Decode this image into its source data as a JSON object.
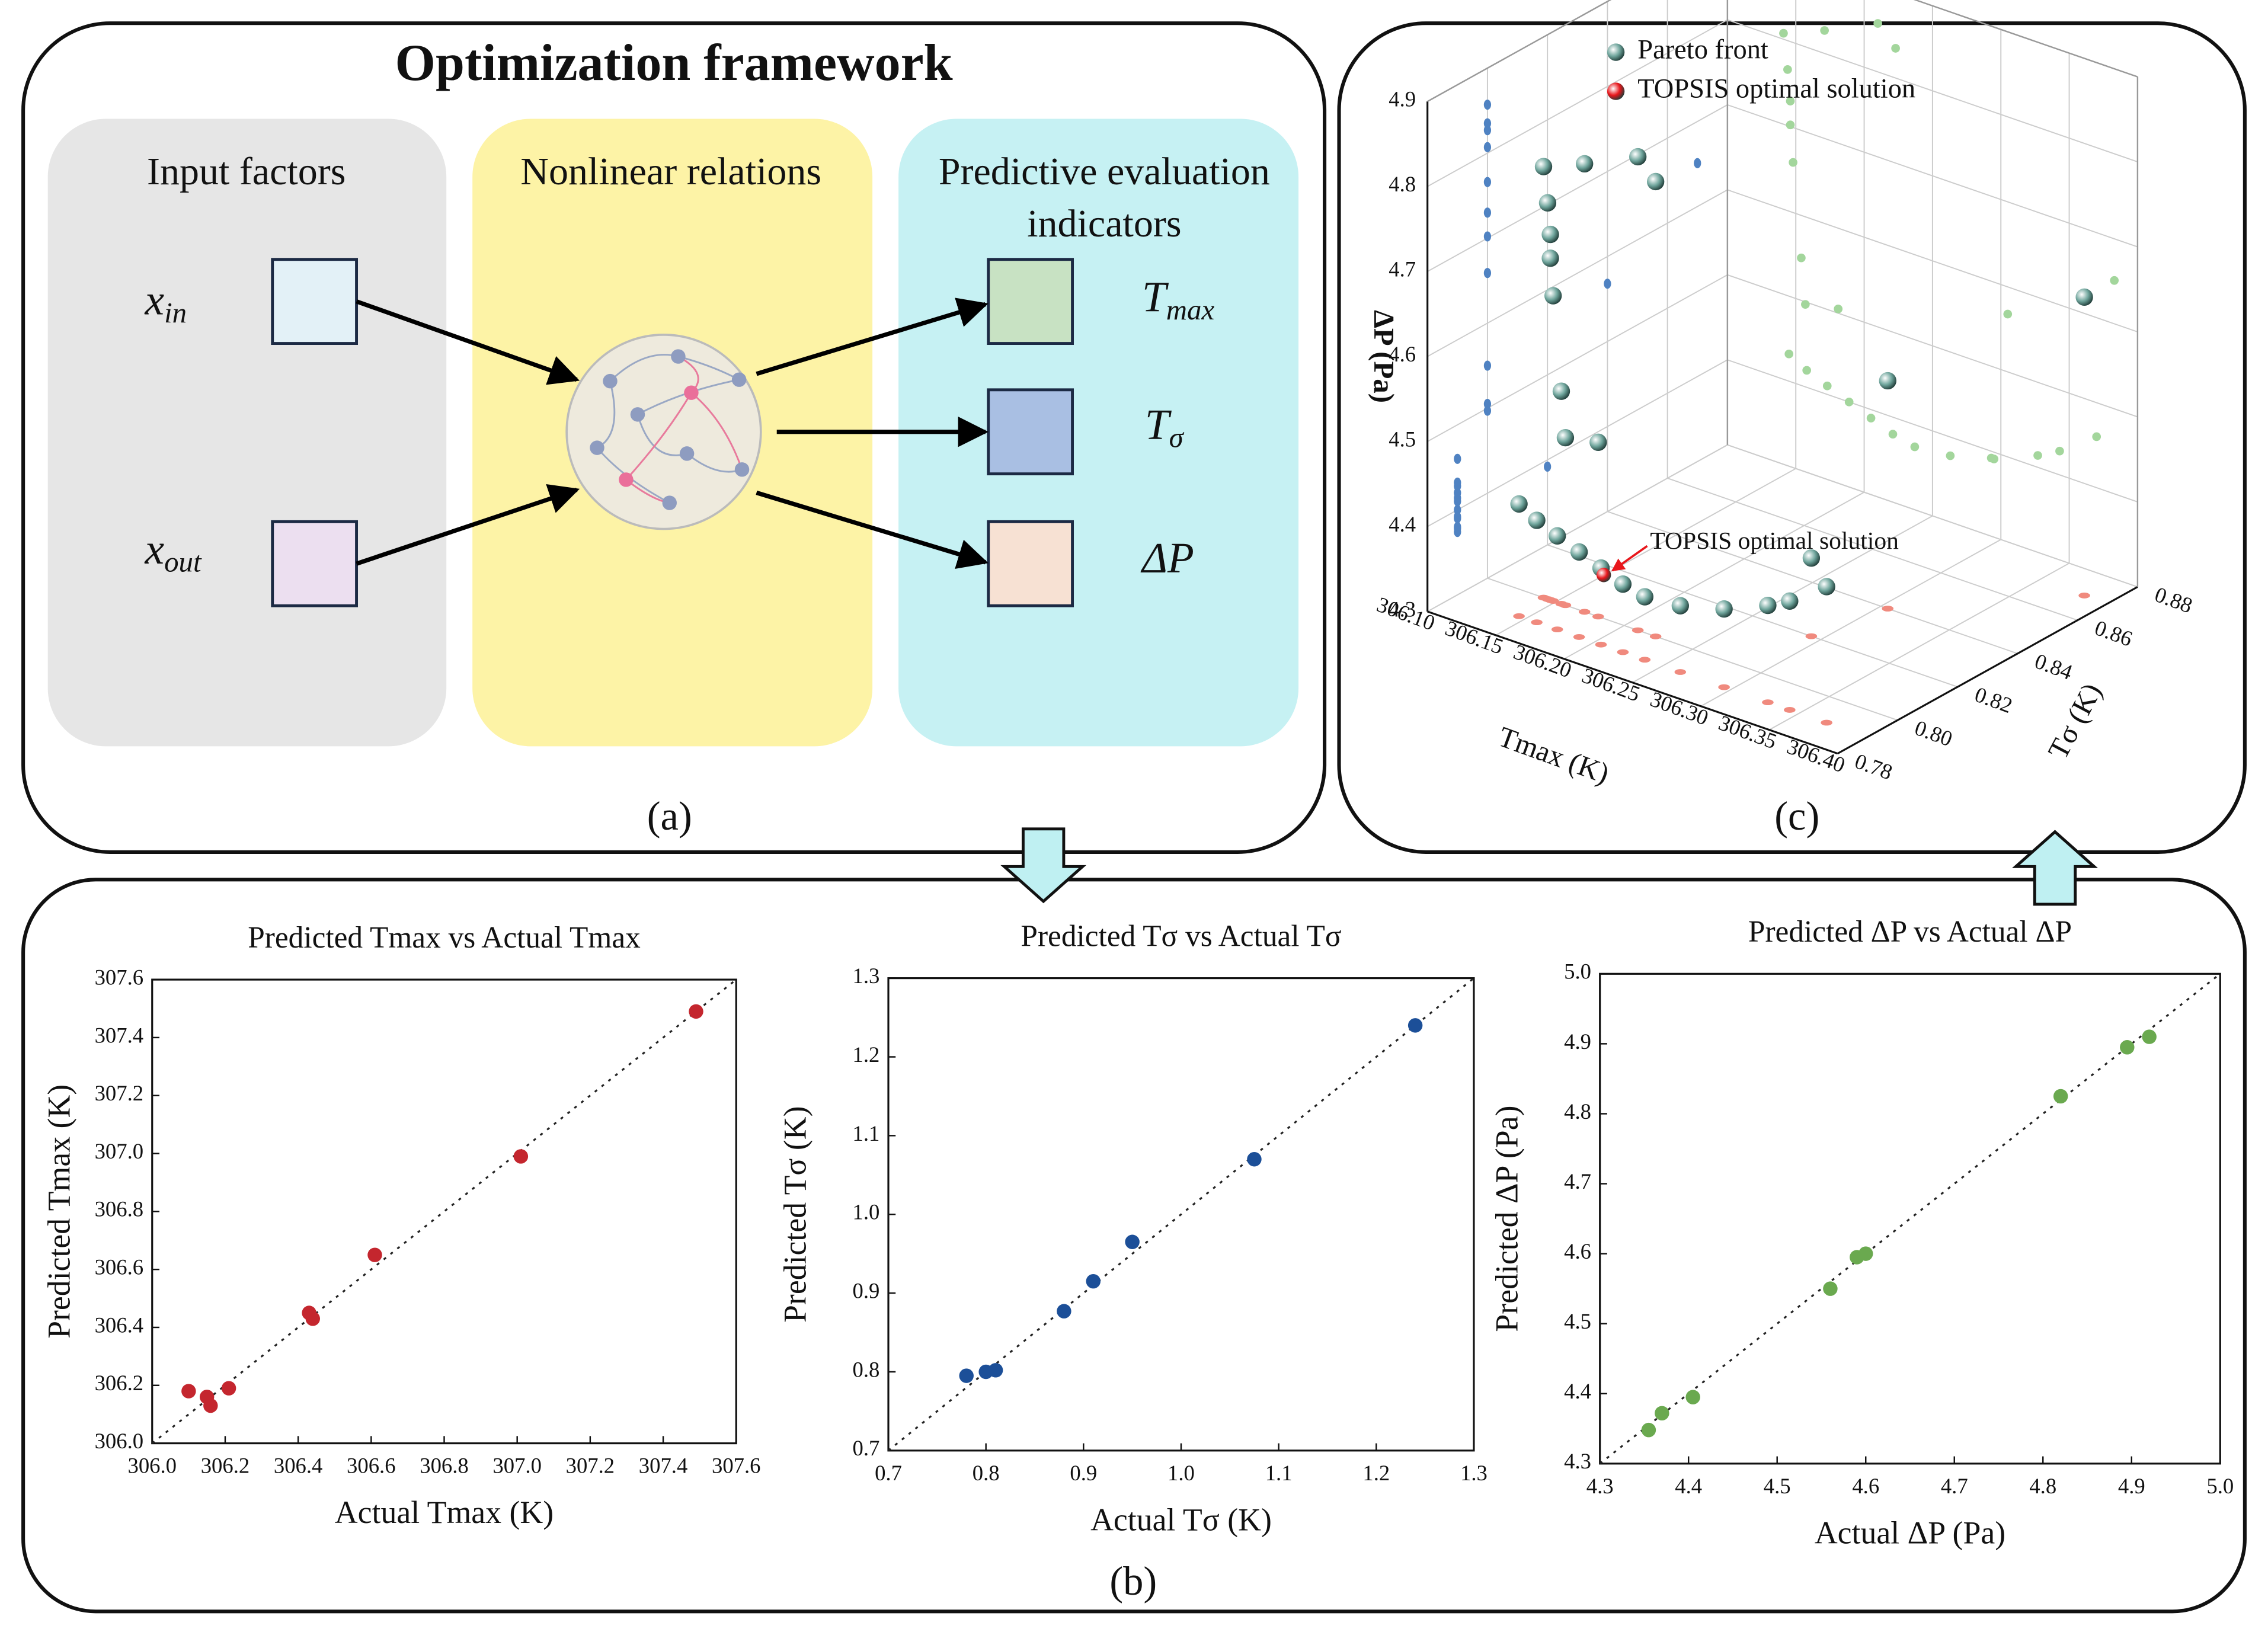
{
  "diagram": {
    "title": "Optimization framework",
    "columns": [
      {
        "lines": [
          "Input factors"
        ]
      },
      {
        "lines": [
          "Nonlinear relations"
        ]
      },
      {
        "lines": [
          "Predictive evaluation",
          "indicators"
        ]
      }
    ],
    "inputs": [
      {
        "symbol": "x",
        "subscript": "in"
      },
      {
        "symbol": "x",
        "subscript": "out"
      }
    ],
    "outputs": [
      {
        "symbol": "T",
        "subscript": "max"
      },
      {
        "symbol": "T",
        "subscript": "σ"
      },
      {
        "symbol": "ΔP"
      }
    ],
    "panel_labels": [
      "(a)",
      "(b)",
      "(c)"
    ]
  },
  "chart_data": [
    {
      "type": "scatter",
      "title": "Predicted Tmax vs Actual Tmax",
      "xlabel": "Actual Tmax (K)",
      "ylabel": "Predicted Tmax (K)",
      "color": "#c4262e",
      "x": [
        306.1,
        306.15,
        306.16,
        306.21,
        306.43,
        306.44,
        306.61,
        307.01,
        307.49
      ],
      "values": [
        306.18,
        306.16,
        306.13,
        306.19,
        306.45,
        306.43,
        306.65,
        306.99,
        307.49
      ],
      "xlim": [
        306.0,
        307.6
      ],
      "ylim": [
        306.0,
        307.6
      ],
      "xticks": [
        {
          "value": 306.0,
          "label": "306.0"
        },
        306.2,
        306.4,
        306.6,
        306.8,
        {
          "value": 307.0,
          "label": "307.0"
        },
        307.2,
        307.4,
        307.6
      ],
      "yticks": [
        {
          "value": 306.0,
          "label": "306.0"
        },
        306.2,
        306.4,
        306.6,
        306.8,
        {
          "value": 307.0,
          "label": "307.0"
        },
        307.2,
        307.4,
        307.6
      ]
    },
    {
      "type": "scatter",
      "title": "Predicted Tσ vs Actual Tσ",
      "xlabel": "Actual Tσ (K)",
      "ylabel": "Predicted Tσ (K)",
      "color": "#1c4f98",
      "x": [
        0.78,
        0.8,
        0.81,
        0.88,
        0.91,
        0.95,
        1.075,
        1.24
      ],
      "values": [
        0.795,
        0.8,
        0.802,
        0.877,
        0.915,
        0.965,
        1.07,
        1.24
      ],
      "xlim": [
        0.7,
        1.3
      ],
      "ylim": [
        0.7,
        1.3
      ],
      "xticks": [
        0.7,
        0.8,
        0.9,
        {
          "value": 1.0,
          "label": "1.0"
        },
        1.1,
        1.2,
        1.3
      ],
      "yticks": [
        0.7,
        0.8,
        0.9,
        {
          "value": 1.0,
          "label": "1.0"
        },
        1.1,
        1.2,
        1.3
      ]
    },
    {
      "type": "scatter",
      "title": "Predicted ΔP vs Actual ΔP",
      "xlabel": "Actual ΔP (Pa)",
      "ylabel": "Predicted ΔP (Pa)",
      "color": "#6aa94f",
      "x": [
        4.355,
        4.37,
        4.405,
        4.56,
        4.59,
        4.6,
        4.82,
        4.895,
        4.92
      ],
      "values": [
        4.348,
        4.372,
        4.395,
        4.55,
        4.595,
        4.6,
        4.825,
        4.895,
        4.91
      ],
      "xlim": [
        4.3,
        5.0
      ],
      "ylim": [
        4.3,
        5.0
      ],
      "xticks": [
        4.3,
        4.4,
        4.5,
        4.6,
        4.7,
        4.8,
        4.9,
        {
          "value": 5.0,
          "label": "5.0"
        }
      ],
      "yticks": [
        4.3,
        4.4,
        4.5,
        4.6,
        4.7,
        4.8,
        4.9,
        {
          "value": 5.0,
          "label": "5.0"
        }
      ]
    },
    {
      "type": "scatter3d",
      "xlabel": "Tmax (K)",
      "ylabel": "Tσ (K)",
      "zlabel": "ΔP (Pa)",
      "annotation": "TOPSIS optimal solution",
      "xlim": [
        306.1,
        306.4
      ],
      "ylim": [
        0.78,
        0.88
      ],
      "zlim": [
        4.3,
        4.9
      ],
      "xticks": [
        {
          "value": 306.1,
          "label": "306.10"
        },
        306.15,
        {
          "value": 306.2,
          "label": "306.20"
        },
        306.25,
        {
          "value": 306.3,
          "label": "306.30"
        },
        306.35,
        {
          "value": 306.4,
          "label": "306.40"
        }
      ],
      "yticks": [
        0.78,
        {
          "value": 0.8,
          "label": "0.80"
        },
        0.82,
        0.84,
        0.86,
        0.88
      ],
      "zticks": [
        4.3,
        4.4,
        4.5,
        4.6,
        4.7,
        4.8,
        4.9
      ],
      "projection_colors": {
        "floor": "#f08a7e",
        "tmax_wall": "#4f82c2",
        "tsigma_wall": "#a3d69c"
      },
      "series": [
        {
          "name": "Pareto front",
          "color": "#6fa59c",
          "x": [
            306.141,
            306.171,
            306.21,
            306.223,
            306.144,
            306.146,
            306.146,
            306.148,
            306.154,
            306.157,
            306.181,
            306.383,
            306.305,
            306.293,
            306.145,
            306.158,
            306.173,
            306.189,
            306.205,
            306.221,
            306.237,
            306.263,
            306.295,
            306.327,
            306.343,
            306.37
          ],
          "y": [
            0.8,
            0.8,
            0.8,
            0.8,
            0.8,
            0.8,
            0.8,
            0.8,
            0.8,
            0.8,
            0.8,
            0.87,
            0.84,
            0.82,
            0.79,
            0.79,
            0.79,
            0.79,
            0.79,
            0.79,
            0.79,
            0.79,
            0.79,
            0.79,
            0.79,
            0.79
          ],
          "z": [
            4.807,
            4.827,
            4.857,
            4.835,
            4.766,
            4.73,
            4.702,
            4.659,
            4.55,
            4.497,
            4.505,
            4.651,
            4.568,
            4.392,
            4.432,
            4.42,
            4.41,
            4.4,
            4.39,
            4.38,
            4.374,
            4.378,
            4.392,
            4.414,
            4.428,
            4.46
          ]
        },
        {
          "name": "TOPSIS optimal solution",
          "color": "#e8161b",
          "x": [
            306.207
          ],
          "y": [
            0.79
          ],
          "z": [
            4.383
          ]
        }
      ]
    }
  ]
}
